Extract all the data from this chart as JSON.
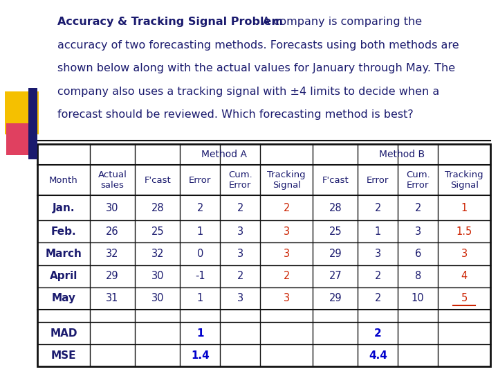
{
  "title_bold_part": "Accuracy & Tracking Signal Problem",
  "title_lines": [
    ": A company is comparing the",
    "accuracy of two forecasting methods. Forecasts using both methods are",
    "shown below along with the actual values for January through May. The",
    "company also uses a tracking signal with ±4 limits to decide when a",
    "forecast should be reviewed. Which forecasting method is best?"
  ],
  "header2": [
    "Month",
    "Actual\nsales",
    "F'cast",
    "Error",
    "Cum.\nError",
    "Tracking\nSignal",
    "F'cast",
    "Error",
    "Cum.\nError",
    "Tracking\nSignal"
  ],
  "rows": [
    [
      "Jan.",
      "30",
      "28",
      "2",
      "2",
      "2",
      "28",
      "2",
      "2",
      "1"
    ],
    [
      "Feb.",
      "26",
      "25",
      "1",
      "3",
      "3",
      "25",
      "1",
      "3",
      "1.5"
    ],
    [
      "March",
      "32",
      "32",
      "0",
      "3",
      "3",
      "29",
      "3",
      "6",
      "3"
    ],
    [
      "April",
      "29",
      "30",
      "-1",
      "2",
      "2",
      "27",
      "2",
      "8",
      "4"
    ],
    [
      "May",
      "31",
      "30",
      "1",
      "3",
      "3",
      "29",
      "2",
      "10",
      "5"
    ]
  ],
  "bg_color": "#ffffff",
  "text_color": "#1a1a6e",
  "text_color_red": "#cc2200",
  "text_color_blue": "#0000cc",
  "grid_color": "#111111",
  "yellow_color": "#f5c000",
  "pink_color": "#e04060",
  "blue_color": "#1a1a6e",
  "font_size_title": 11.5,
  "font_size_table": 10.5,
  "font_size_header": 9.5
}
